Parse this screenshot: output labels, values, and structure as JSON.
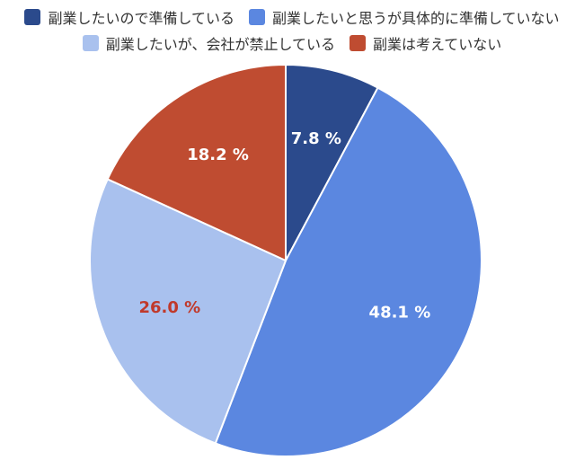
{
  "chart_data": {
    "type": "pie",
    "categories": [
      "副業したいので準備している",
      "副業したいと思うが具体的に準備していない",
      "副業したいが、会社が禁止している",
      "副業は考えていない"
    ],
    "values": [
      7.8,
      48.1,
      26.0,
      18.2
    ],
    "labels": [
      "7.8 %",
      "48.1 %",
      "26.0 %",
      "18.2 %"
    ],
    "colors": [
      "#2b4a8c",
      "#5b87e0",
      "#a9c1ee",
      "#bf4c31"
    ],
    "label_colors": [
      "#ffffff",
      "#ffffff",
      "#c0392b",
      "#ffffff"
    ],
    "start_angle_deg": 0,
    "direction": "clockwise",
    "legend_position": "top"
  }
}
